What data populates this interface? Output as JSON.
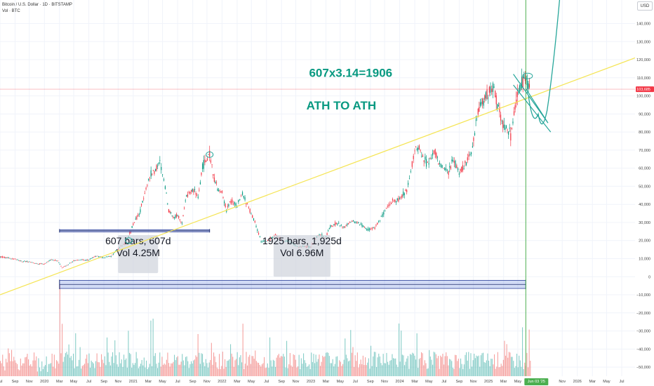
{
  "header": {
    "symbol_title": "Bitcoin / U.S. Dollar · 1D · BITSTAMP",
    "volume_title": "Vol · BTC",
    "currency_label": "USD"
  },
  "chart_data": {
    "type": "line",
    "title": "",
    "price_axis": {
      "ticks": [
        {
          "value": 140000,
          "label": "140,000"
        },
        {
          "value": 130000,
          "label": "130,000"
        },
        {
          "value": 120000,
          "label": "120,000"
        },
        {
          "value": 110000,
          "label": "110,000"
        },
        {
          "value": 100000,
          "label": "100,000"
        },
        {
          "value": 90000,
          "label": "90,000"
        },
        {
          "value": 80000,
          "label": "80,000"
        },
        {
          "value": 70000,
          "label": "70,000"
        },
        {
          "value": 60000,
          "label": "60,000"
        },
        {
          "value": 50000,
          "label": "50,000"
        },
        {
          "value": 40000,
          "label": "40,000"
        },
        {
          "value": 30000,
          "label": "30,000"
        },
        {
          "value": 20000,
          "label": "20,000"
        },
        {
          "value": 10000,
          "label": "10,000"
        },
        {
          "value": 0,
          "label": "0"
        },
        {
          "value": -10000,
          "label": "−10,000"
        },
        {
          "value": -20000,
          "label": "−20,000"
        },
        {
          "value": -30000,
          "label": "−30,000"
        },
        {
          "value": -40000,
          "label": "−40,000"
        },
        {
          "value": -50000,
          "label": "−50,000"
        }
      ],
      "range": [
        -55000,
        153000
      ]
    },
    "current_price": {
      "value": 103685,
      "label": "103,685",
      "color": "#f23645"
    },
    "time_axis": {
      "ticks": [
        {
          "t": 2019.5,
          "label": "Jul"
        },
        {
          "t": 2019.67,
          "label": "Sep"
        },
        {
          "t": 2019.83,
          "label": "Nov"
        },
        {
          "t": 2020.0,
          "label": "2020"
        },
        {
          "t": 2020.17,
          "label": "Mar"
        },
        {
          "t": 2020.33,
          "label": "May"
        },
        {
          "t": 2020.5,
          "label": "Jul"
        },
        {
          "t": 2020.67,
          "label": "Sep"
        },
        {
          "t": 2020.83,
          "label": "Nov"
        },
        {
          "t": 2021.0,
          "label": "2021"
        },
        {
          "t": 2021.17,
          "label": "Mar"
        },
        {
          "t": 2021.33,
          "label": "May"
        },
        {
          "t": 2021.5,
          "label": "Jul"
        },
        {
          "t": 2021.67,
          "label": "Sep"
        },
        {
          "t": 2021.83,
          "label": "Nov"
        },
        {
          "t": 2022.0,
          "label": "2022"
        },
        {
          "t": 2022.17,
          "label": "Mar"
        },
        {
          "t": 2022.33,
          "label": "May"
        },
        {
          "t": 2022.5,
          "label": "Jul"
        },
        {
          "t": 2022.67,
          "label": "Sep"
        },
        {
          "t": 2022.83,
          "label": "Nov"
        },
        {
          "t": 2023.0,
          "label": "2023"
        },
        {
          "t": 2023.17,
          "label": "Mar"
        },
        {
          "t": 2023.33,
          "label": "May"
        },
        {
          "t": 2023.5,
          "label": "Jul"
        },
        {
          "t": 2023.67,
          "label": "Sep"
        },
        {
          "t": 2023.83,
          "label": "Nov"
        },
        {
          "t": 2024.0,
          "label": "2024"
        },
        {
          "t": 2024.17,
          "label": "Mar"
        },
        {
          "t": 2024.33,
          "label": "May"
        },
        {
          "t": 2024.5,
          "label": "Jul"
        },
        {
          "t": 2024.67,
          "label": "Sep"
        },
        {
          "t": 2024.83,
          "label": "Nov"
        },
        {
          "t": 2025.0,
          "label": "2025"
        },
        {
          "t": 2025.17,
          "label": "Mar"
        },
        {
          "t": 2025.33,
          "label": "May"
        },
        {
          "t": 2025.83,
          "label": "Nov"
        },
        {
          "t": 2026.0,
          "label": "2026"
        },
        {
          "t": 2026.17,
          "label": "Mar"
        },
        {
          "t": 2026.33,
          "label": "May"
        },
        {
          "t": 2026.5,
          "label": "Jul"
        }
      ],
      "range": [
        2019.5,
        2026.65
      ],
      "highlight_label": "Jun 03 '25",
      "highlight_t": 2025.42
    },
    "series": [
      {
        "color": "#089981",
        "points": [
          [
            2019.5,
            11000
          ],
          [
            2019.58,
            10500
          ],
          [
            2019.67,
            9800
          ],
          [
            2019.75,
            8500
          ],
          [
            2019.83,
            8300
          ],
          [
            2019.92,
            7200
          ],
          [
            2020.0,
            7200
          ],
          [
            2020.08,
            9500
          ],
          [
            2020.15,
            8800
          ],
          [
            2020.2,
            5000
          ],
          [
            2020.27,
            6800
          ],
          [
            2020.33,
            8800
          ],
          [
            2020.42,
            9500
          ],
          [
            2020.5,
            9200
          ],
          [
            2020.58,
            11500
          ],
          [
            2020.67,
            10500
          ],
          [
            2020.75,
            11500
          ],
          [
            2020.83,
            15500
          ],
          [
            2020.92,
            19000
          ],
          [
            2021.0,
            29000
          ],
          [
            2021.08,
            36000
          ],
          [
            2021.13,
            47000
          ],
          [
            2021.2,
            57000
          ],
          [
            2021.25,
            59000
          ],
          [
            2021.3,
            63000
          ],
          [
            2021.36,
            50000
          ],
          [
            2021.4,
            37000
          ],
          [
            2021.45,
            33000
          ],
          [
            2021.5,
            34000
          ],
          [
            2021.55,
            30000
          ],
          [
            2021.6,
            45000
          ],
          [
            2021.68,
            48000
          ],
          [
            2021.73,
            44000
          ],
          [
            2021.78,
            61000
          ],
          [
            2021.86,
            67500
          ],
          [
            2021.9,
            57000
          ],
          [
            2021.95,
            48000
          ],
          [
            2022.0,
            46000
          ],
          [
            2022.05,
            37000
          ],
          [
            2022.1,
            42000
          ],
          [
            2022.17,
            39000
          ],
          [
            2022.23,
            46000
          ],
          [
            2022.3,
            38000
          ],
          [
            2022.37,
            30000
          ],
          [
            2022.44,
            20000
          ],
          [
            2022.5,
            19500
          ],
          [
            2022.6,
            23000
          ],
          [
            2022.68,
            19500
          ],
          [
            2022.75,
            19800
          ],
          [
            2022.85,
            16500
          ],
          [
            2022.95,
            16600
          ],
          [
            2023.0,
            16600
          ],
          [
            2023.08,
            23000
          ],
          [
            2023.17,
            22000
          ],
          [
            2023.22,
            28000
          ],
          [
            2023.3,
            29500
          ],
          [
            2023.37,
            27000
          ],
          [
            2023.45,
            30500
          ],
          [
            2023.55,
            29500
          ],
          [
            2023.63,
            26000
          ],
          [
            2023.72,
            27000
          ],
          [
            2023.82,
            35000
          ],
          [
            2023.92,
            42000
          ],
          [
            2024.0,
            43000
          ],
          [
            2024.08,
            48000
          ],
          [
            2024.17,
            70000
          ],
          [
            2024.22,
            71000
          ],
          [
            2024.3,
            63000
          ],
          [
            2024.4,
            69000
          ],
          [
            2024.45,
            62000
          ],
          [
            2024.55,
            57000
          ],
          [
            2024.6,
            65000
          ],
          [
            2024.67,
            58000
          ],
          [
            2024.75,
            63000
          ],
          [
            2024.82,
            70000
          ],
          [
            2024.87,
            90000
          ],
          [
            2024.92,
            96000
          ],
          [
            2024.97,
            100000
          ],
          [
            2025.05,
            105000
          ],
          [
            2025.1,
            96000
          ],
          [
            2025.15,
            85000
          ],
          [
            2025.2,
            82000
          ],
          [
            2025.25,
            78000
          ],
          [
            2025.3,
            94000
          ],
          [
            2025.35,
            104000
          ],
          [
            2025.4,
            110000
          ],
          [
            2025.45,
            105000
          ],
          [
            2025.47,
            103685
          ]
        ]
      }
    ],
    "volume": {
      "color_up": "#26a69a",
      "color_down": "#ef5350",
      "level_start": 2020.17
    },
    "annotations": [
      {
        "type": "text",
        "text": "607x3.14=1906",
        "color": "#089981",
        "t": 2022.98,
        "price": 110500
      },
      {
        "type": "text",
        "text": "ATH TO ATH",
        "color": "#089981",
        "t": 2022.95,
        "price": 92500
      },
      {
        "type": "range-box",
        "line1": "607 bars, 607d",
        "line2": "Vol 4.25M",
        "t1": 2020.83,
        "t2": 2021.28,
        "price1": 23000,
        "price2": 2000
      },
      {
        "type": "range-box",
        "line1": "1925 bars, 1,925d",
        "line2": "Vol 6.96M",
        "t1": 2022.58,
        "t2": 2023.22,
        "price1": 23000,
        "price2": 0
      },
      {
        "type": "date-range",
        "t1": 2020.17,
        "t2": 2021.86,
        "price1": 26000,
        "price2": 24800
      },
      {
        "type": "date-range",
        "t1": 2020.17,
        "t2": 2025.42,
        "price1": -2000,
        "price2": -6500
      },
      {
        "type": "trendline",
        "color": "#f5e556",
        "t1": 2019.5,
        "price1": -10000,
        "t2": 2026.65,
        "price2": 121000
      },
      {
        "type": "vertical-line",
        "color": "#4caf50",
        "t": 2025.42
      },
      {
        "type": "horizontal-line",
        "color": "#f23645",
        "price": 103685
      }
    ]
  }
}
